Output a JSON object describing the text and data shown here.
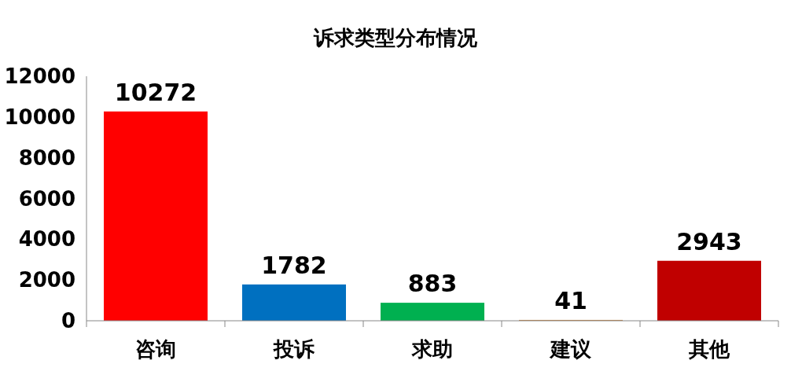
{
  "chart_data": {
    "type": "bar",
    "title": "诉求类型分布情况",
    "categories": [
      "咨询",
      "投诉",
      "求助",
      "建议",
      "其他"
    ],
    "values": [
      10272,
      1782,
      883,
      41,
      2943
    ],
    "colors": [
      "#ff0000",
      "#0070c0",
      "#00b050",
      "#c8803c",
      "#c00000"
    ],
    "ylim": [
      0,
      12000
    ],
    "yticks": [
      0,
      2000,
      4000,
      6000,
      8000,
      10000,
      12000
    ],
    "data_labels": true
  }
}
